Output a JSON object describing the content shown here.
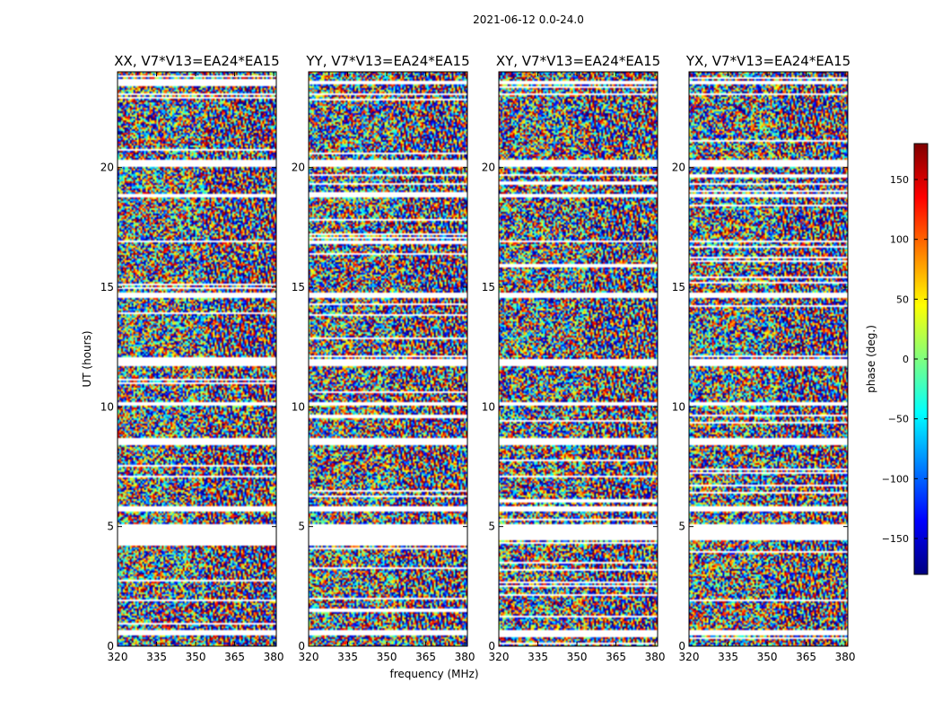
{
  "figure": {
    "suptitle": "2021-06-12 0.0-24.0",
    "xlabel": "frequency (MHz)",
    "ylabel": "UT (hours)"
  },
  "colorbar": {
    "label": "phase (deg.)",
    "range": [
      -180,
      180
    ],
    "ticks": [
      -150,
      -100,
      -50,
      0,
      50,
      100,
      150
    ],
    "tick_labels": [
      "−150",
      "−100",
      "−50",
      "0",
      "50",
      "100",
      "150"
    ],
    "colors": [
      "#00007f",
      "#0000ff",
      "#007fff",
      "#00ffff",
      "#7fff7f",
      "#ffff00",
      "#ff7f00",
      "#ff0000",
      "#7f0000"
    ]
  },
  "chart_data": [
    {
      "type": "heatmap",
      "title": "XX, V7*V13=EA24*EA15",
      "x_range": [
        320,
        381
      ],
      "y_range": [
        0,
        24
      ],
      "x_ticks": [
        320,
        335,
        350,
        365,
        380
      ],
      "y_ticks": [
        0,
        5,
        10,
        15,
        20
      ],
      "value_range": [
        -180,
        180
      ],
      "flagged_bands_hours": [
        [
          0.45,
          0.65
        ],
        [
          4.2,
          5.1
        ],
        [
          5.65,
          5.85
        ],
        [
          8.5,
          8.7
        ],
        [
          10.05,
          10.2
        ],
        [
          11.7,
          12.0
        ],
        [
          14.55,
          14.75
        ],
        [
          16.85,
          16.95
        ],
        [
          18.75,
          18.9
        ],
        [
          20.0,
          20.3
        ],
        [
          23.0,
          23.1
        ],
        [
          23.5,
          23.6
        ]
      ]
    },
    {
      "type": "heatmap",
      "title": "YY, V7*V13=EA24*EA15",
      "x_range": [
        320,
        381
      ],
      "y_range": [
        0,
        24
      ],
      "x_ticks": [
        320,
        335,
        350,
        365,
        380
      ],
      "y_ticks": [
        0,
        5,
        10,
        15,
        20
      ],
      "value_range": [
        -180,
        180
      ],
      "flagged_bands_hours": [
        [
          0.45,
          0.65
        ],
        [
          4.2,
          5.1
        ],
        [
          5.65,
          5.85
        ],
        [
          8.5,
          8.7
        ],
        [
          10.05,
          10.2
        ],
        [
          11.7,
          12.0
        ],
        [
          14.55,
          14.75
        ],
        [
          16.85,
          16.95
        ],
        [
          18.75,
          18.9
        ],
        [
          20.0,
          20.3
        ],
        [
          23.0,
          23.1
        ],
        [
          23.5,
          23.6
        ]
      ]
    },
    {
      "type": "heatmap",
      "title": "XY, V7*V13=EA24*EA15",
      "x_range": [
        320,
        381
      ],
      "y_range": [
        0,
        24
      ],
      "x_ticks": [
        320,
        335,
        350,
        365,
        380
      ],
      "y_ticks": [
        0,
        5,
        10,
        15,
        20
      ],
      "value_range": [
        -180,
        180
      ],
      "flagged_bands_hours": [
        [
          0.45,
          0.65
        ],
        [
          4.45,
          5.1
        ],
        [
          5.65,
          5.85
        ],
        [
          8.5,
          8.7
        ],
        [
          10.05,
          10.2
        ],
        [
          11.7,
          12.0
        ],
        [
          14.55,
          14.75
        ],
        [
          16.85,
          16.95
        ],
        [
          18.75,
          18.9
        ],
        [
          20.0,
          20.3
        ],
        [
          23.0,
          23.1
        ],
        [
          23.5,
          23.6
        ]
      ]
    },
    {
      "type": "heatmap",
      "title": "YX, V7*V13=EA24*EA15",
      "x_range": [
        320,
        381
      ],
      "y_range": [
        0,
        24
      ],
      "x_ticks": [
        320,
        335,
        350,
        365,
        380
      ],
      "y_ticks": [
        0,
        5,
        10,
        15,
        20
      ],
      "value_range": [
        -180,
        180
      ],
      "flagged_bands_hours": [
        [
          0.45,
          0.65
        ],
        [
          4.45,
          5.1
        ],
        [
          5.65,
          5.85
        ],
        [
          8.5,
          8.7
        ],
        [
          10.05,
          10.2
        ],
        [
          11.7,
          12.0
        ],
        [
          14.55,
          14.75
        ],
        [
          16.85,
          16.95
        ],
        [
          18.75,
          18.9
        ],
        [
          20.0,
          20.3
        ],
        [
          23.0,
          23.1
        ],
        [
          23.5,
          23.6
        ]
      ]
    }
  ]
}
